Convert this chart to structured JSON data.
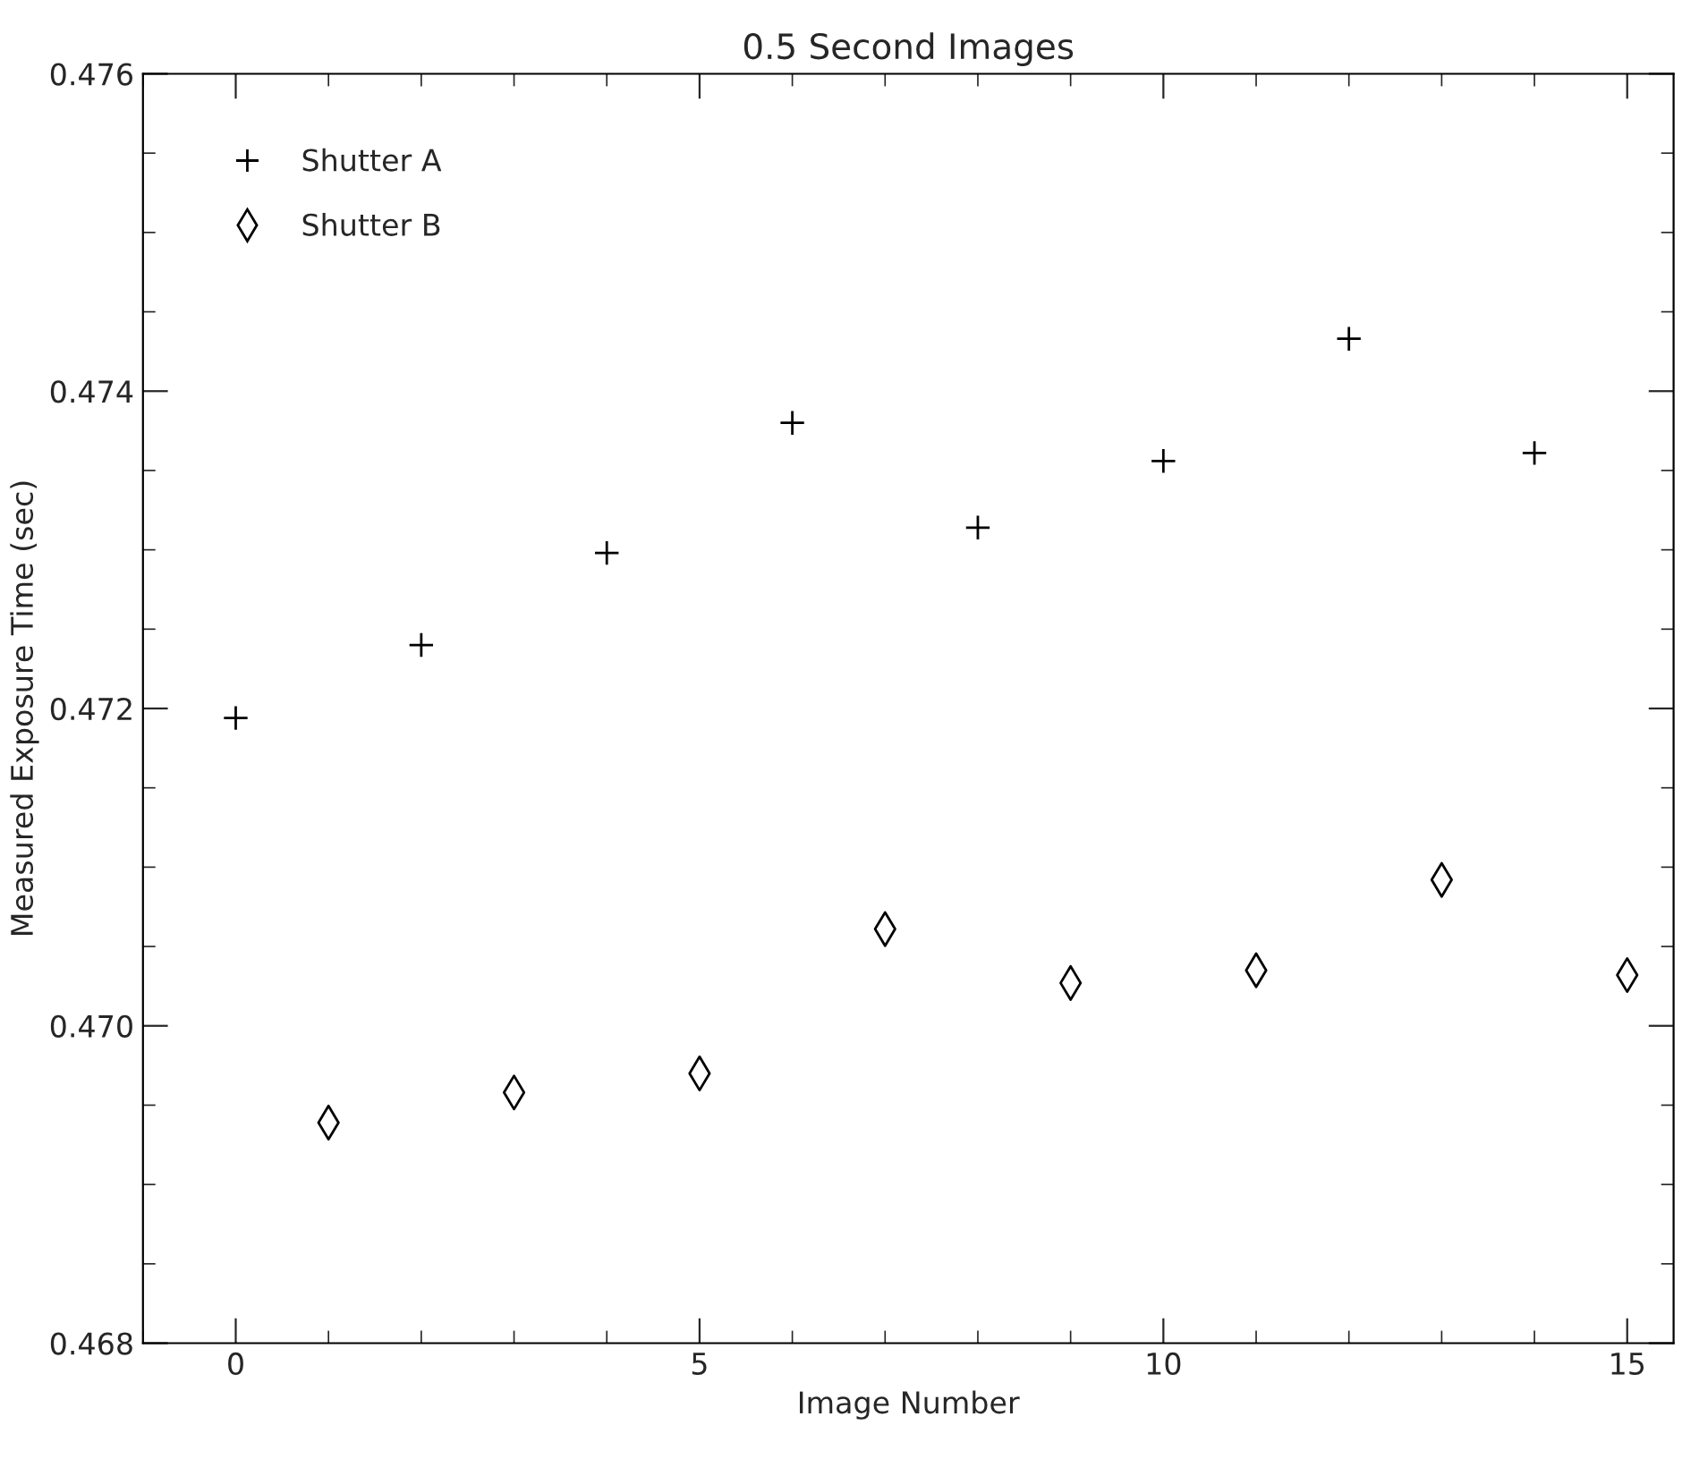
{
  "chart_data": {
    "type": "scatter",
    "title": "0.5 Second Images",
    "xlabel": "Image Number",
    "ylabel": "Measured Exposure Time (sec)",
    "series": [
      {
        "name": "Shutter A",
        "color": "#000000",
        "marker": "cross",
        "x": [
          0,
          2,
          4,
          6,
          8,
          10,
          12,
          14
        ],
        "values": [
          0.47194,
          0.4724,
          0.47298,
          0.4738,
          0.47314,
          0.47356,
          0.47433,
          0.47361
        ]
      },
      {
        "name": "Shutter B",
        "color": "#000000",
        "marker": "diamond",
        "x": [
          1,
          3,
          5,
          7,
          9,
          11,
          13,
          15
        ],
        "values": [
          0.46939,
          0.46958,
          0.4697,
          0.47061,
          0.47027,
          0.47035,
          0.47092,
          0.47032
        ]
      }
    ],
    "xlim": [
      -1,
      15.5
    ],
    "xticks": [
      0,
      5,
      10,
      15
    ],
    "ylim": [
      0.468,
      0.476
    ],
    "yticks": [
      {
        "value": 0.468,
        "label": "0.468"
      },
      {
        "value": 0.47,
        "label": "0.470"
      },
      {
        "value": 0.472,
        "label": "0.472"
      },
      {
        "value": 0.474,
        "label": "0.474"
      },
      {
        "value": 0.476,
        "label": "0.476"
      }
    ],
    "grid": false,
    "legend": "top left"
  }
}
